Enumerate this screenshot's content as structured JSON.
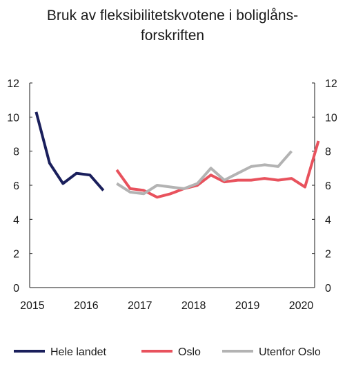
{
  "chart_data": {
    "type": "line",
    "title_line1": "Bruk av fleksibilitetskvotene i boliglåns-",
    "title_line2": "forskriften",
    "xlabel": "",
    "ylabel": "",
    "xlim": [
      2015.0,
      2020.3
    ],
    "ylim": [
      0,
      12
    ],
    "y_ticks": [
      0,
      2,
      4,
      6,
      8,
      10,
      12
    ],
    "x_ticks": [
      {
        "value": 2015.05,
        "label": "2015"
      },
      {
        "value": 2016.05,
        "label": "2016"
      },
      {
        "value": 2017.05,
        "label": "2017"
      },
      {
        "value": 2018.05,
        "label": "2018"
      },
      {
        "value": 2019.05,
        "label": "2019"
      },
      {
        "value": 2020.05,
        "label": "2020"
      }
    ],
    "grid": false,
    "legend_position": "bottom",
    "series": [
      {
        "name": "Hele landet",
        "color": "#1a1f5c",
        "points": [
          [
            2015.12,
            10.3
          ],
          [
            2015.37,
            7.3
          ],
          [
            2015.62,
            6.1
          ],
          [
            2015.87,
            6.7
          ],
          [
            2016.12,
            6.6
          ],
          [
            2016.37,
            5.7
          ]
        ]
      },
      {
        "name": "Oslo",
        "color": "#e8525d",
        "points": [
          [
            2016.62,
            6.9
          ],
          [
            2016.87,
            5.8
          ],
          [
            2017.12,
            5.7
          ],
          [
            2017.37,
            5.3
          ],
          [
            2017.62,
            5.5
          ],
          [
            2017.87,
            5.8
          ],
          [
            2018.12,
            6.0
          ],
          [
            2018.37,
            6.6
          ],
          [
            2018.62,
            6.2
          ],
          [
            2018.87,
            6.3
          ],
          [
            2019.12,
            6.3
          ],
          [
            2019.37,
            6.4
          ],
          [
            2019.62,
            6.3
          ],
          [
            2019.87,
            6.4
          ],
          [
            2020.12,
            5.9
          ],
          [
            2020.37,
            8.6
          ]
        ]
      },
      {
        "name": "Utenfor Oslo",
        "color": "#b3b3b3",
        "points": [
          [
            2016.62,
            6.1
          ],
          [
            2016.87,
            5.6
          ],
          [
            2017.12,
            5.5
          ],
          [
            2017.37,
            6.0
          ],
          [
            2017.62,
            5.9
          ],
          [
            2017.87,
            5.8
          ],
          [
            2018.12,
            6.1
          ],
          [
            2018.37,
            7.0
          ],
          [
            2018.62,
            6.3
          ],
          [
            2018.87,
            6.7
          ],
          [
            2019.12,
            7.1
          ],
          [
            2019.37,
            7.2
          ],
          [
            2019.62,
            7.1
          ],
          [
            2019.87,
            8.0
          ]
        ]
      }
    ]
  }
}
